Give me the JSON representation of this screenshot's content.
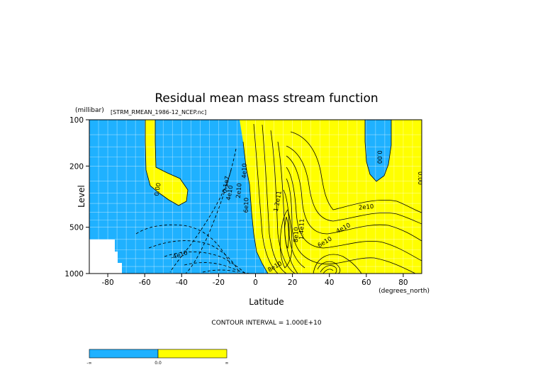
{
  "chart_data": {
    "type": "contour",
    "title": "Residual mean mass stream function",
    "subtitle": "[STRM_RMEAN_1986-12_NCEP.nc]",
    "xlabel": "Latitude",
    "x_units": "(degrees_north)",
    "ylabel": "Level",
    "y_units": "(millibar)",
    "xlim": [
      -90,
      90
    ],
    "ylim": [
      1000,
      100
    ],
    "y_scale": "log",
    "xticks": [
      -80,
      -60,
      -40,
      -20,
      0,
      20,
      40,
      60,
      80
    ],
    "xtick_labels": [
      "-80",
      "-60",
      "-40",
      "-20",
      "0",
      "20",
      "40",
      "60",
      "80"
    ],
    "yticks": [
      100,
      200,
      500,
      1000
    ],
    "ytick_labels": [
      "100",
      "200",
      "500",
      "1000"
    ],
    "grid": true,
    "contour_interval_text": "CONTOUR INTERVAL = 1.000E+10",
    "contour_labels": [
      {
        "text": "0.00",
        "lat": -52,
        "level": 285,
        "rotate": -80
      },
      {
        "text": "0.00",
        "lat": 66,
        "level": 175,
        "rotate": 90
      },
      {
        "text": "0.00",
        "lat": 88,
        "level": 240,
        "rotate": 90
      },
      {
        "text": "-4e10",
        "lat": -41,
        "level": 780,
        "rotate": -18
      },
      {
        "text": "0.1e7",
        "lat": -15,
        "level": 265,
        "rotate": -80
      },
      {
        "text": "4e10",
        "lat": -13,
        "level": 300,
        "rotate": -80
      },
      {
        "text": "2e10",
        "lat": -8,
        "level": 290,
        "rotate": -85
      },
      {
        "text": "6e10",
        "lat": -4,
        "level": 360,
        "rotate": -88
      },
      {
        "text": "4e10",
        "lat": -5,
        "level": 215,
        "rotate": -88
      },
      {
        "text": "1.2e11",
        "lat": 13,
        "level": 340,
        "rotate": -80
      },
      {
        "text": "8e10",
        "lat": 23,
        "level": 560,
        "rotate": -88
      },
      {
        "text": "1.4e11",
        "lat": 26,
        "level": 515,
        "rotate": -88
      },
      {
        "text": "2e10",
        "lat": 60,
        "level": 380,
        "rotate": -5
      },
      {
        "text": "4e10",
        "lat": 48,
        "level": 520,
        "rotate": -28
      },
      {
        "text": "6e10",
        "lat": 38,
        "level": 640,
        "rotate": -30
      },
      {
        "text": "8e10",
        "lat": 11,
        "level": 925,
        "rotate": -30
      }
    ],
    "colorbar": {
      "labels": [
        "-∞",
        "0.0",
        "∞"
      ],
      "colors": [
        "#1fb1ff",
        "#ffff00"
      ]
    },
    "colors": {
      "negative": "#1fb1ff",
      "positive": "#ffff00"
    }
  }
}
